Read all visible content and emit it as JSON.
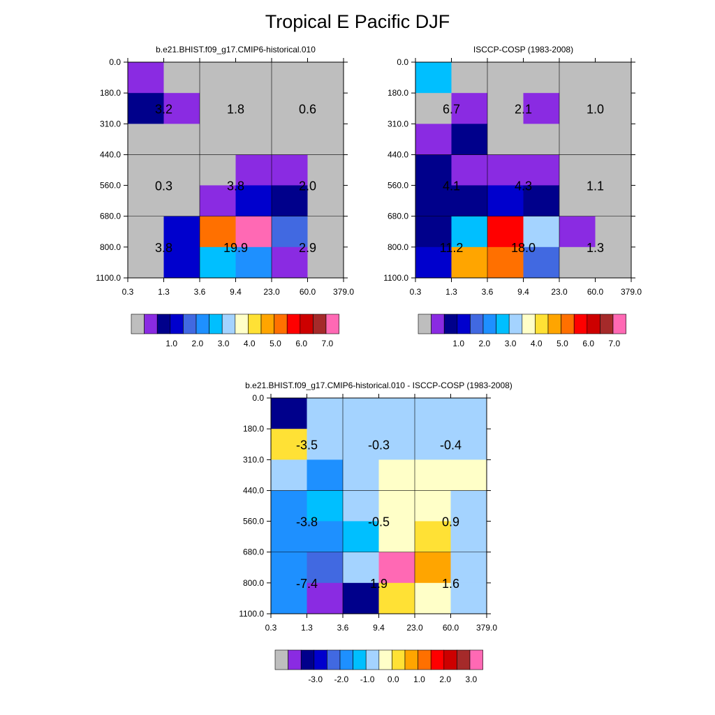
{
  "figure": {
    "title": "Tropical E Pacific DJF"
  },
  "colors": {
    "abs_palette": [
      "#bebebe",
      "#8a2be2",
      "#00008b",
      "#0000cd",
      "#4169e1",
      "#1e90ff",
      "#00bfff",
      "#a4d3ff",
      "#ffffc8",
      "#ffe135",
      "#ffa500",
      "#ff7000",
      "#ff0000",
      "#cd0000",
      "#a52a2a",
      "#ff69b4"
    ],
    "diff_palette": [
      "#bebebe",
      "#8a2be2",
      "#00008b",
      "#0000cd",
      "#4169e1",
      "#1e90ff",
      "#00bfff",
      "#a4d3ff",
      "#ffffc8",
      "#ffe135",
      "#ffa500",
      "#ff7000",
      "#ff0000",
      "#cd0000",
      "#a52a2a",
      "#ff69b4"
    ],
    "background": "#ffffff",
    "axis": "#000000"
  },
  "chart_data": [
    {
      "id": "model",
      "type": "heatmap",
      "title": "b.e21.BHIST.f09_g17.CMIP6-historical.010",
      "xlabel": "",
      "ylabel": "",
      "x_ticks": [
        "0.3",
        "1.3",
        "3.6",
        "9.4",
        "23.0",
        "60.0",
        "379.0"
      ],
      "y_ticks": [
        "0.0",
        "180.0",
        "310.0",
        "440.0",
        "560.0",
        "680.0",
        "800.0",
        "1100.0"
      ],
      "cell_colors": [
        [
          1,
          0,
          0,
          0,
          0,
          0
        ],
        [
          2,
          1,
          0,
          0,
          0,
          0
        ],
        [
          0,
          0,
          0,
          0,
          0,
          0
        ],
        [
          0,
          0,
          0,
          1,
          1,
          0
        ],
        [
          0,
          0,
          1,
          3,
          2,
          0
        ],
        [
          0,
          3,
          11,
          15,
          4,
          0
        ],
        [
          0,
          3,
          6,
          5,
          1,
          0
        ]
      ],
      "group_values": [
        [
          "3.2",
          "1.8",
          "0.6"
        ],
        [
          "0.3",
          "3.8",
          "2.0"
        ],
        [
          "3.8",
          "19.9",
          "2.9"
        ]
      ],
      "colorbar_labels": [
        "1.0",
        "2.0",
        "3.0",
        "4.0",
        "5.0",
        "6.0",
        "7.0"
      ]
    },
    {
      "id": "obs",
      "type": "heatmap",
      "title": "ISCCP-COSP (1983-2008)",
      "xlabel": "",
      "ylabel": "",
      "x_ticks": [
        "0.3",
        "1.3",
        "3.6",
        "9.4",
        "23.0",
        "60.0",
        "379.0"
      ],
      "y_ticks": [
        "0.0",
        "180.0",
        "310.0",
        "440.0",
        "560.0",
        "680.0",
        "800.0",
        "1100.0"
      ],
      "cell_colors": [
        [
          6,
          0,
          0,
          0,
          0,
          0
        ],
        [
          0,
          1,
          0,
          1,
          0,
          0
        ],
        [
          1,
          2,
          0,
          0,
          0,
          0
        ],
        [
          2,
          1,
          1,
          1,
          0,
          0
        ],
        [
          2,
          2,
          3,
          2,
          0,
          0
        ],
        [
          2,
          6,
          12,
          7,
          1,
          0
        ],
        [
          3,
          10,
          11,
          4,
          0,
          0
        ]
      ],
      "group_values": [
        [
          "6.7",
          "2.1",
          "1.0"
        ],
        [
          "4.1",
          "4.3",
          "1.1"
        ],
        [
          "11.2",
          "18.0",
          "1.3"
        ]
      ],
      "colorbar_labels": [
        "1.0",
        "2.0",
        "3.0",
        "4.0",
        "5.0",
        "6.0",
        "7.0"
      ]
    },
    {
      "id": "diff",
      "type": "heatmap",
      "title": "b.e21.BHIST.f09_g17.CMIP6-historical.010 - ISCCP-COSP (1983-2008)",
      "xlabel": "",
      "ylabel": "",
      "x_ticks": [
        "0.3",
        "1.3",
        "3.6",
        "9.4",
        "23.0",
        "60.0",
        "379.0"
      ],
      "y_ticks": [
        "0.0",
        "180.0",
        "310.0",
        "440.0",
        "560.0",
        "680.0",
        "800.0",
        "1100.0"
      ],
      "cell_colors": [
        [
          2,
          7,
          7,
          7,
          7,
          7
        ],
        [
          9,
          7,
          7,
          7,
          7,
          7
        ],
        [
          7,
          5,
          7,
          8,
          8,
          8
        ],
        [
          5,
          6,
          7,
          8,
          8,
          7
        ],
        [
          5,
          5,
          6,
          8,
          9,
          7
        ],
        [
          5,
          4,
          7,
          15,
          10,
          7
        ],
        [
          5,
          1,
          2,
          9,
          8,
          7
        ]
      ],
      "group_values": [
        [
          "-3.5",
          "-0.3",
          "-0.4"
        ],
        [
          "-3.8",
          "-0.5",
          "0.9"
        ],
        [
          "-7.4",
          "1.9",
          "1.6"
        ]
      ],
      "colorbar_labels": [
        "-3.0",
        "-2.0",
        "-1.0",
        "0.0",
        "1.0",
        "2.0",
        "3.0"
      ]
    }
  ]
}
